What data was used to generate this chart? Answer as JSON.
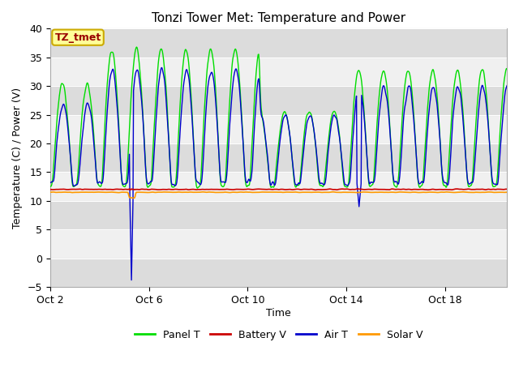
{
  "title": "Tonzi Tower Met: Temperature and Power",
  "xlabel": "Time",
  "ylabel": "Temperature (C) / Power (V)",
  "ylim": [
    -5,
    40
  ],
  "yticks": [
    -5,
    0,
    5,
    10,
    15,
    20,
    25,
    30,
    35,
    40
  ],
  "x_tick_labels": [
    "Oct 2",
    "Oct 6",
    "Oct 10",
    "Oct 14",
    "Oct 18"
  ],
  "x_tick_positions": [
    0,
    4,
    8,
    12,
    16
  ],
  "xlim": [
    0,
    18.5
  ],
  "annotation_label": "TZ_tmet",
  "annotation_box_color": "#FFFF99",
  "annotation_text_color": "#990000",
  "annotation_edge_color": "#CCAA00",
  "bg_color": "#FFFFFF",
  "plot_bg_color": "#F0F0F0",
  "stripe_color": "#DCDCDC",
  "stripe_ranges": [
    [
      -5,
      0
    ],
    [
      5,
      10
    ],
    [
      15,
      20
    ],
    [
      25,
      30
    ],
    [
      35,
      40
    ]
  ],
  "panel_color": "#00DD00",
  "battery_color": "#CC0000",
  "air_color": "#0000CC",
  "solar_color": "#FF9900",
  "legend_items": [
    {
      "label": "Panel T",
      "color": "#00DD00"
    },
    {
      "label": "Battery V",
      "color": "#CC0000"
    },
    {
      "label": "Air T",
      "color": "#0000CC"
    },
    {
      "label": "Solar V",
      "color": "#FF9900"
    }
  ]
}
